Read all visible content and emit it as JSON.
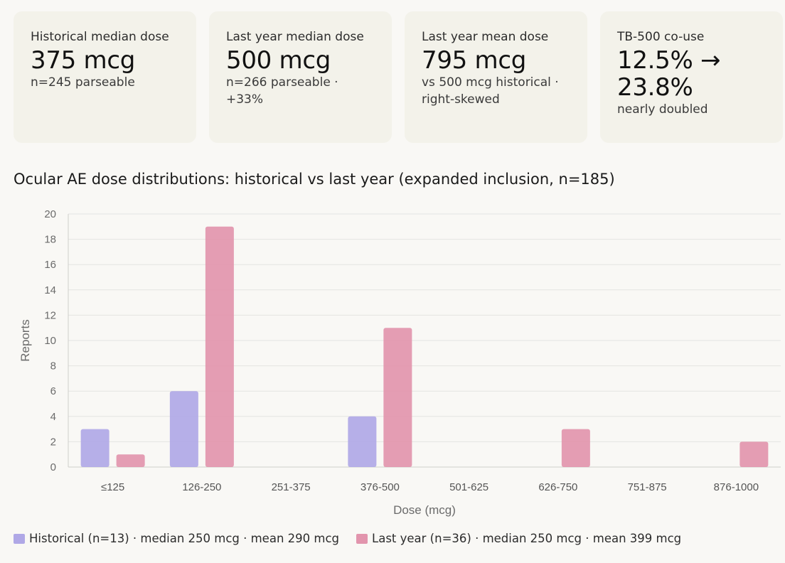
{
  "cards": [
    {
      "label": "Historical median dose",
      "value": "375 mcg",
      "sub": "n=245 parseable"
    },
    {
      "label": "Last year median dose",
      "value": "500 mcg",
      "sub": "n=266 parseable · +33%"
    },
    {
      "label": "Last year mean dose",
      "value": "795 mcg",
      "sub": "vs 500 mcg historical · right-skewed"
    },
    {
      "label": "TB-500 co-use",
      "value": "12.5% → 23.8%",
      "sub": "nearly doubled"
    }
  ],
  "colors": {
    "historical": "#b0a8e6",
    "last_year": "#e295ad",
    "grid": "#e4e4e2",
    "axis_text": "#6b6b6b"
  },
  "chart_data": {
    "type": "bar",
    "title": "Ocular AE dose distributions: historical vs last year (expanded inclusion, n=185)",
    "xlabel": "Dose (mcg)",
    "ylabel": "Reports",
    "ylim": [
      0,
      20
    ],
    "yticks": [
      0,
      2,
      4,
      6,
      8,
      10,
      12,
      14,
      16,
      18,
      20
    ],
    "grid": true,
    "legend": "bottom-left",
    "categories": [
      "≤125",
      "126-250",
      "251-375",
      "376-500",
      "501-625",
      "626-750",
      "751-875",
      "876-1000"
    ],
    "series": [
      {
        "name": "Historical (n=13) · median 250 mcg · mean 290 mcg",
        "values": [
          3,
          6,
          0,
          4,
          0,
          0,
          0,
          0
        ]
      },
      {
        "name": "Last year (n=36) · median 250 mcg · mean 399 mcg",
        "values": [
          1,
          19,
          0,
          11,
          0,
          3,
          0,
          2
        ]
      }
    ]
  }
}
